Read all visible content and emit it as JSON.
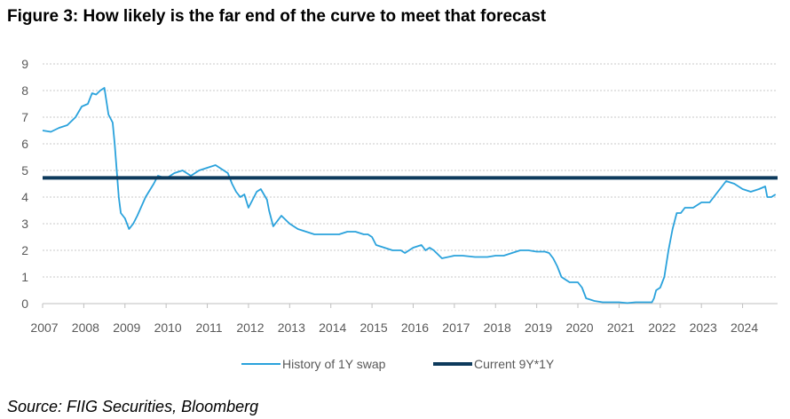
{
  "title": "Figure 3: How likely is the far end of the curve to meet that forecast",
  "source": "Source: FIIG Securities, Bloomberg",
  "colors": {
    "history": "#2aa2dc",
    "current": "#0d3a5c",
    "grid": "#c8c8c8",
    "tick": "#595959"
  },
  "chart_data": {
    "type": "line",
    "title": "Figure 3: How likely is the far end of the curve to meet that forecast",
    "xlabel": "",
    "ylabel": "",
    "xlim": [
      2007.0,
      2024.85
    ],
    "ylim": [
      0,
      9
    ],
    "grid": true,
    "legend_position": "bottom",
    "x_ticks": [
      "2007",
      "2008",
      "2009",
      "2010",
      "2011",
      "2012",
      "2013",
      "2014",
      "2015",
      "2016",
      "2017",
      "2018",
      "2019",
      "2020",
      "2021",
      "2022",
      "2023",
      "2024"
    ],
    "y_ticks": [
      "0",
      "1",
      "2",
      "3",
      "4",
      "5",
      "6",
      "7",
      "8",
      "9"
    ],
    "series": [
      {
        "name": "History of 1Y swap",
        "x": [
          2007.0,
          2007.2,
          2007.4,
          2007.6,
          2007.8,
          2007.95,
          2008.1,
          2008.2,
          2008.3,
          2008.4,
          2008.5,
          2008.55,
          2008.6,
          2008.7,
          2008.75,
          2008.8,
          2008.85,
          2008.9,
          2009.0,
          2009.1,
          2009.2,
          2009.3,
          2009.5,
          2009.7,
          2009.8,
          2010.0,
          2010.2,
          2010.4,
          2010.6,
          2010.8,
          2011.0,
          2011.2,
          2011.4,
          2011.5,
          2011.6,
          2011.7,
          2011.8,
          2011.9,
          2012.0,
          2012.1,
          2012.2,
          2012.3,
          2012.45,
          2012.5,
          2012.6,
          2012.8,
          2013.0,
          2013.2,
          2013.4,
          2013.6,
          2013.8,
          2014.0,
          2014.2,
          2014.4,
          2014.6,
          2014.8,
          2014.9,
          2015.0,
          2015.1,
          2015.3,
          2015.5,
          2015.7,
          2015.8,
          2016.0,
          2016.2,
          2016.3,
          2016.4,
          2016.5,
          2016.7,
          2017.0,
          2017.2,
          2017.5,
          2017.8,
          2018.0,
          2018.2,
          2018.4,
          2018.6,
          2018.8,
          2019.0,
          2019.2,
          2019.3,
          2019.4,
          2019.5,
          2019.6,
          2019.8,
          2020.0,
          2020.1,
          2020.2,
          2020.4,
          2020.6,
          2020.8,
          2021.0,
          2021.2,
          2021.4,
          2021.6,
          2021.8,
          2021.85,
          2021.9,
          2022.0,
          2022.1,
          2022.2,
          2022.3,
          2022.4,
          2022.5,
          2022.6,
          2022.8,
          2023.0,
          2023.2,
          2023.3,
          2023.4,
          2023.5,
          2023.6,
          2023.8,
          2024.0,
          2024.2,
          2024.4,
          2024.55,
          2024.6,
          2024.7,
          2024.8
        ],
        "y": [
          6.5,
          6.45,
          6.6,
          6.7,
          7.0,
          7.4,
          7.5,
          7.9,
          7.85,
          8.0,
          8.1,
          7.6,
          7.1,
          6.8,
          6.0,
          5.0,
          4.0,
          3.4,
          3.2,
          2.8,
          3.0,
          3.3,
          4.0,
          4.5,
          4.8,
          4.7,
          4.9,
          5.0,
          4.8,
          5.0,
          5.1,
          5.2,
          5.0,
          4.9,
          4.5,
          4.2,
          4.0,
          4.1,
          3.6,
          3.9,
          4.2,
          4.3,
          3.9,
          3.5,
          2.9,
          3.3,
          3.0,
          2.8,
          2.7,
          2.6,
          2.6,
          2.6,
          2.6,
          2.7,
          2.7,
          2.6,
          2.6,
          2.5,
          2.2,
          2.1,
          2.0,
          2.0,
          1.9,
          2.1,
          2.2,
          2.0,
          2.1,
          2.0,
          1.7,
          1.8,
          1.8,
          1.75,
          1.75,
          1.8,
          1.8,
          1.9,
          2.0,
          2.0,
          1.95,
          1.95,
          1.9,
          1.7,
          1.4,
          1.0,
          0.8,
          0.8,
          0.6,
          0.2,
          0.1,
          0.05,
          0.05,
          0.05,
          0.02,
          0.05,
          0.05,
          0.05,
          0.2,
          0.5,
          0.6,
          1.0,
          2.0,
          2.8,
          3.4,
          3.4,
          3.6,
          3.6,
          3.8,
          3.8,
          4.0,
          4.2,
          4.4,
          4.6,
          4.5,
          4.3,
          4.2,
          4.3,
          4.4,
          4.0,
          4.0,
          4.1
        ]
      },
      {
        "name": "Current 9Y*1Y",
        "x": [
          2007.0,
          2024.85
        ],
        "y": [
          4.72,
          4.72
        ]
      }
    ]
  }
}
